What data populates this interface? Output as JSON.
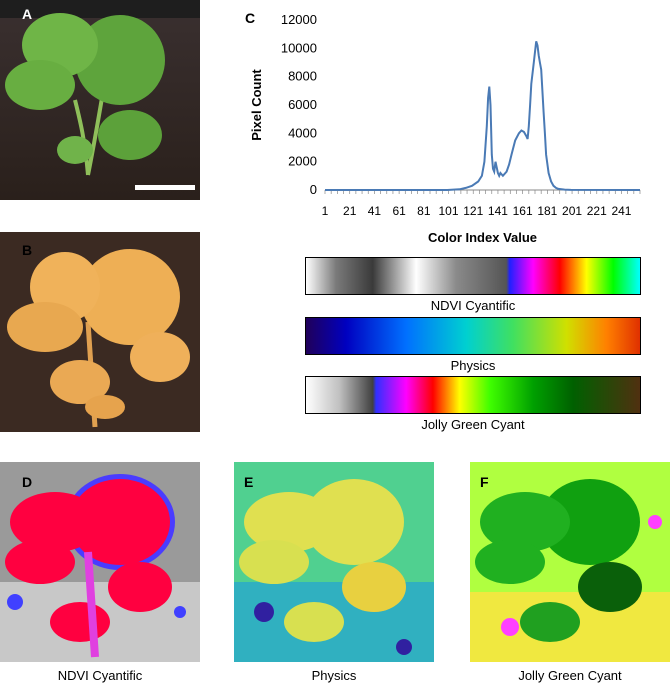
{
  "panels": {
    "a_label": "A",
    "b_label": "B",
    "c_label": "C",
    "d_label": "D",
    "e_label": "E",
    "f_label": "F"
  },
  "colorbars": [
    {
      "label": "NDVI Cyantific"
    },
    {
      "label": "Physics"
    },
    {
      "label": "Jolly Green Cyant"
    }
  ],
  "bottom_captions": [
    "NDVI Cyantific",
    "Physics",
    "Jolly Green Cyant"
  ],
  "chart_data": {
    "type": "line",
    "xlabel": "Color Index Value",
    "ylabel": "Pixel Count",
    "ylim": [
      0,
      12000
    ],
    "xlim": [
      1,
      256
    ],
    "yticks": [
      0,
      2000,
      4000,
      6000,
      8000,
      10000,
      12000
    ],
    "xtick_labels": [
      "1",
      "21",
      "41",
      "61",
      "81",
      "101",
      "121",
      "141",
      "161",
      "181",
      "201",
      "221",
      "241"
    ],
    "grid": false,
    "series": [
      {
        "color": "#4a7ab5",
        "x": [
          1,
          100,
          110,
          115,
          120,
          125,
          128,
          130,
          132,
          133,
          134,
          135,
          136,
          137,
          138,
          139,
          140,
          141,
          142,
          143,
          145,
          148,
          150,
          152,
          155,
          158,
          160,
          162,
          164,
          165,
          166,
          167,
          168,
          170,
          172,
          173,
          174,
          175,
          176,
          177,
          178,
          179,
          180,
          182,
          184,
          186,
          188,
          190,
          195,
          200,
          256
        ],
        "y": [
          0,
          0,
          50,
          150,
          300,
          600,
          1000,
          2000,
          4500,
          6500,
          7300,
          6000,
          2500,
          1500,
          1300,
          2000,
          1600,
          1200,
          1000,
          1200,
          1000,
          1300,
          1800,
          2500,
          3500,
          4000,
          4200,
          4100,
          3800,
          3600,
          4500,
          6000,
          7500,
          9000,
          10500,
          10200,
          9500,
          9000,
          8500,
          7000,
          5500,
          4000,
          2500,
          1200,
          600,
          300,
          150,
          80,
          30,
          10,
          0
        ]
      }
    ]
  }
}
